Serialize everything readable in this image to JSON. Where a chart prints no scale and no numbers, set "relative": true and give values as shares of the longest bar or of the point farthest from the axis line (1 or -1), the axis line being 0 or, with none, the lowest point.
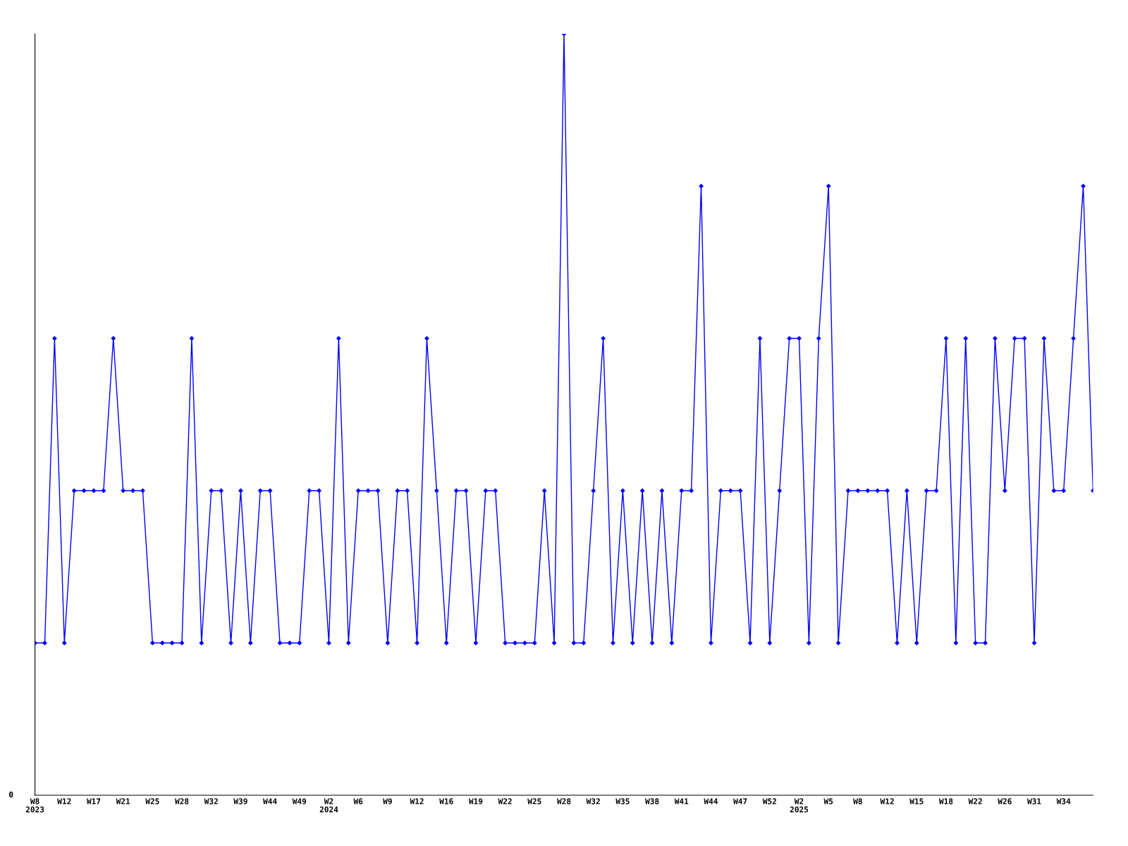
{
  "chart_data": {
    "type": "line",
    "relative": true,
    "marker": "diamond",
    "line_style": "solid",
    "grid": false,
    "legend": false,
    "categories": [
      "W8\n2023",
      null,
      null,
      "W12",
      null,
      null,
      "W17",
      null,
      null,
      "W21",
      null,
      null,
      "W25",
      null,
      null,
      "W28",
      null,
      null,
      "W32",
      null,
      null,
      "W39",
      null,
      null,
      "W44",
      null,
      null,
      "W49",
      null,
      null,
      "W2\n2024",
      null,
      null,
      "W6",
      null,
      null,
      "W9",
      null,
      null,
      "W12",
      null,
      null,
      "W16",
      null,
      null,
      "W19",
      null,
      null,
      "W22",
      null,
      null,
      "W25",
      null,
      null,
      "W28",
      null,
      null,
      "W32",
      null,
      null,
      "W35",
      null,
      null,
      "W38",
      null,
      null,
      "W41",
      null,
      null,
      "W44",
      null,
      null,
      "W47",
      null,
      null,
      "W52",
      null,
      null,
      "W2\n2025",
      null,
      null,
      "W5",
      null,
      null,
      "W8",
      null,
      null,
      "W12",
      null,
      null,
      "W15",
      null,
      null,
      "W18",
      null,
      null,
      "W22",
      null,
      null,
      "W26",
      null,
      null,
      "W31",
      null,
      null,
      "W34",
      null,
      null,
      null
    ],
    "series": [
      {
        "color": "#0000ff",
        "values": [
          0.2,
          0.2,
          0.6,
          0.2,
          0.4,
          0.4,
          0.4,
          0.4,
          0.6,
          0.4,
          0.4,
          0.4,
          0.2,
          0.2,
          0.2,
          0.2,
          0.6,
          0.2,
          0.4,
          0.4,
          0.2,
          0.4,
          0.2,
          0.4,
          0.4,
          0.2,
          0.2,
          0.2,
          0.4,
          0.4,
          0.2,
          0.6,
          0.2,
          0.4,
          0.4,
          0.4,
          0.2,
          0.4,
          0.4,
          0.2,
          0.6,
          0.4,
          0.2,
          0.4,
          0.4,
          0.2,
          0.4,
          0.4,
          0.2,
          0.2,
          0.2,
          0.2,
          0.4,
          0.2,
          1.0,
          0.2,
          0.2,
          0.4,
          0.6,
          0.2,
          0.4,
          0.2,
          0.4,
          0.2,
          0.4,
          0.2,
          0.4,
          0.4,
          0.8,
          0.2,
          0.4,
          0.4,
          0.4,
          0.2,
          0.6,
          0.2,
          0.4,
          0.6,
          0.6,
          0.2,
          0.6,
          0.8,
          0.2,
          0.4,
          0.4,
          0.4,
          0.4,
          0.4,
          0.2,
          0.4,
          0.2,
          0.4,
          0.4,
          0.6,
          0.2,
          0.6,
          0.2,
          0.2,
          0.6,
          0.4,
          0.6,
          0.6,
          0.2,
          0.6,
          0.4,
          0.4,
          0.6,
          0.8,
          0.4
        ]
      }
    ],
    "annotations": [
      "0"
    ]
  }
}
